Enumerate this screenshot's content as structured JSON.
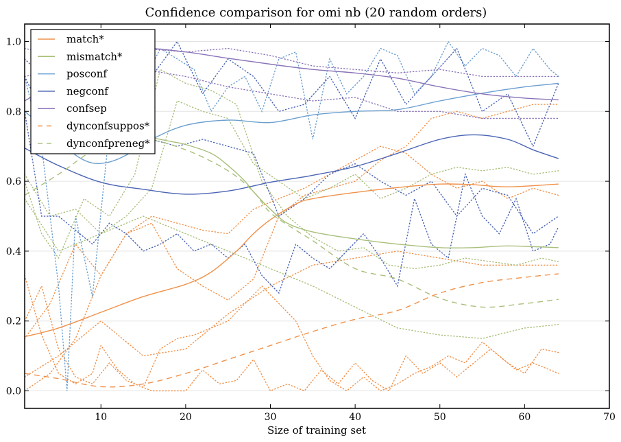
{
  "chart_data": {
    "type": "line",
    "title": "Confidence comparison for omi nb (20 random orders)",
    "xlabel": "Size of training set",
    "ylabel": "",
    "xlim": [
      1,
      70
    ],
    "ylim": [
      -0.05,
      1.05
    ],
    "xticks": [
      10,
      20,
      30,
      40,
      50,
      60,
      70
    ],
    "xtick_labels": [
      "10",
      "20",
      "30",
      "40",
      "50",
      "60",
      "70"
    ],
    "yticks": [
      0.0,
      0.2,
      0.4,
      0.6,
      0.8,
      1.0
    ],
    "ytick_labels": [
      "0.0",
      "0.2",
      "0.4",
      "0.6",
      "0.8",
      "1.0"
    ],
    "grid": "horizontal",
    "legend_position": "top-left",
    "series": [
      {
        "name": "match*",
        "style": "solid",
        "color": "#f0914a",
        "x": [
          1,
          5,
          10,
          15,
          20,
          23,
          26,
          28,
          30,
          33,
          35,
          40,
          45,
          50,
          54,
          58,
          64
        ],
        "y": [
          0.155,
          0.18,
          0.225,
          0.27,
          0.305,
          0.34,
          0.4,
          0.45,
          0.49,
          0.535,
          0.55,
          0.568,
          0.582,
          0.592,
          0.59,
          0.584,
          0.592
        ]
      },
      {
        "name": "mismatch*",
        "style": "solid",
        "color": "#a8bf7a",
        "x": [
          15,
          18,
          20,
          23,
          25,
          27,
          28,
          30,
          32,
          35,
          40,
          45,
          50,
          54,
          58,
          64
        ],
        "y": [
          0.73,
          0.715,
          0.705,
          0.68,
          0.645,
          0.6,
          0.57,
          0.52,
          0.48,
          0.455,
          0.435,
          0.42,
          0.41,
          0.41,
          0.415,
          0.41
        ]
      },
      {
        "name": "posconf",
        "style": "solid",
        "color": "#6b9fd0",
        "x": [
          1,
          3,
          5,
          7,
          9,
          11,
          13,
          16,
          20,
          25,
          30,
          35,
          40,
          45,
          50,
          55,
          60,
          64
        ],
        "y": [
          0.8,
          0.76,
          0.72,
          0.675,
          0.652,
          0.655,
          0.675,
          0.72,
          0.76,
          0.775,
          0.768,
          0.79,
          0.8,
          0.805,
          0.83,
          0.852,
          0.87,
          0.88
        ]
      },
      {
        "name": "negconf",
        "style": "solid",
        "color": "#4a64b4",
        "x": [
          1,
          5,
          10,
          15,
          20,
          25,
          30,
          35,
          40,
          45,
          50,
          54,
          58,
          61,
          64
        ],
        "y": [
          0.695,
          0.645,
          0.597,
          0.577,
          0.563,
          0.572,
          0.597,
          0.617,
          0.642,
          0.68,
          0.72,
          0.733,
          0.72,
          0.69,
          0.665
        ]
      },
      {
        "name": "confsep",
        "style": "solid",
        "color": "#8a74b8",
        "x": [
          1,
          3,
          6,
          10,
          15,
          20,
          25,
          30,
          35,
          40,
          45,
          50,
          55,
          60,
          64
        ],
        "y": [
          0.83,
          0.86,
          0.92,
          0.965,
          0.98,
          0.97,
          0.952,
          0.935,
          0.92,
          0.91,
          0.895,
          0.87,
          0.85,
          0.838,
          0.833
        ]
      },
      {
        "name": "dynconfsuppos*",
        "style": "dashed",
        "color": "#f0914a",
        "x": [
          1,
          5,
          10,
          15,
          20,
          25,
          30,
          35,
          40,
          45,
          50,
          55,
          60,
          64
        ],
        "y": [
          0.05,
          0.035,
          0.012,
          0.02,
          0.05,
          0.09,
          0.13,
          0.17,
          0.205,
          0.23,
          0.28,
          0.31,
          0.325,
          0.335
        ]
      },
      {
        "name": "dynconfpreneg*",
        "style": "dashed",
        "color": "#a8bf7a",
        "x": [
          1,
          5,
          10,
          15,
          20,
          25,
          28,
          30,
          33,
          35,
          40,
          45,
          50,
          55,
          60,
          64
        ],
        "y": [
          0.56,
          0.62,
          0.7,
          0.72,
          0.69,
          0.63,
          0.57,
          0.51,
          0.46,
          0.43,
          0.35,
          0.32,
          0.265,
          0.24,
          0.25,
          0.262
        ]
      }
    ],
    "dotted_series": [
      {
        "color": "#f0914a",
        "x": [
          1,
          3,
          5,
          7,
          9,
          10,
          12,
          14,
          16,
          18,
          20,
          22,
          24,
          26,
          28,
          30,
          32,
          34,
          36,
          38,
          40,
          42,
          44,
          46,
          48,
          50,
          52,
          54,
          56,
          58,
          60,
          62,
          64
        ],
        "y": [
          0.33,
          0.16,
          0.05,
          0.02,
          0.05,
          0.13,
          0.06,
          0.02,
          0.0,
          0.0,
          0.0,
          0.06,
          0.02,
          0.03,
          0.09,
          0.0,
          0.02,
          0.0,
          0.06,
          0.02,
          0.08,
          0.03,
          0.0,
          0.1,
          0.05,
          0.08,
          0.04,
          0.08,
          0.12,
          0.08,
          0.05,
          0.12,
          0.11
        ]
      },
      {
        "color": "#f0914a",
        "x": [
          1,
          3,
          5,
          7,
          9,
          11,
          13,
          15,
          17,
          19,
          21,
          23,
          25,
          27,
          29,
          31,
          33,
          35,
          37,
          39,
          41,
          43,
          45,
          47,
          49,
          51,
          53,
          55,
          57,
          59,
          61,
          64
        ],
        "y": [
          0.2,
          0.3,
          0.12,
          0.04,
          0.02,
          0.08,
          0.03,
          0.01,
          0.12,
          0.15,
          0.16,
          0.18,
          0.2,
          0.25,
          0.3,
          0.25,
          0.2,
          0.1,
          0.03,
          0.0,
          0.04,
          0.0,
          0.02,
          0.05,
          0.07,
          0.1,
          0.08,
          0.14,
          0.1,
          0.06,
          0.08,
          0.05
        ]
      },
      {
        "color": "#f0914a",
        "x": [
          1,
          4,
          7,
          10,
          13,
          16,
          19,
          22,
          25,
          28,
          31,
          34,
          37,
          40,
          43,
          46,
          49,
          52,
          55,
          58,
          61,
          64
        ],
        "y": [
          0.0,
          0.05,
          0.15,
          0.33,
          0.45,
          0.5,
          0.48,
          0.46,
          0.45,
          0.52,
          0.55,
          0.58,
          0.62,
          0.66,
          0.7,
          0.68,
          0.62,
          0.58,
          0.6,
          0.55,
          0.58,
          0.56
        ]
      },
      {
        "color": "#f0914a",
        "x": [
          1,
          4,
          7,
          10,
          13,
          16,
          19,
          22,
          25,
          28,
          31,
          34,
          37,
          40,
          43,
          46,
          49,
          52,
          55,
          58,
          61,
          64
        ],
        "y": [
          0.15,
          0.25,
          0.42,
          0.33,
          0.45,
          0.48,
          0.35,
          0.3,
          0.26,
          0.32,
          0.5,
          0.56,
          0.58,
          0.6,
          0.66,
          0.7,
          0.78,
          0.8,
          0.78,
          0.8,
          0.82,
          0.82
        ]
      },
      {
        "color": "#f0914a",
        "x": [
          1,
          5,
          10,
          15,
          20,
          25,
          30,
          35,
          40,
          45,
          50,
          55,
          60,
          64
        ],
        "y": [
          0.04,
          0.1,
          0.2,
          0.1,
          0.12,
          0.22,
          0.3,
          0.36,
          0.38,
          0.4,
          0.38,
          0.36,
          0.36,
          0.36
        ]
      },
      {
        "color": "#a8bf7a",
        "x": [
          1,
          3,
          5,
          8,
          11,
          14,
          17,
          20,
          23,
          26,
          29,
          32,
          35,
          38,
          41,
          44,
          47,
          50,
          53,
          56,
          59,
          62,
          64
        ],
        "y": [
          0.6,
          0.45,
          0.38,
          0.55,
          0.5,
          0.62,
          0.92,
          0.88,
          0.86,
          0.82,
          0.6,
          0.5,
          0.44,
          0.4,
          0.41,
          0.36,
          0.35,
          0.36,
          0.38,
          0.37,
          0.36,
          0.38,
          0.37
        ]
      },
      {
        "color": "#a8bf7a",
        "x": [
          1,
          4,
          7,
          10,
          13,
          16,
          19,
          22,
          25,
          28,
          31,
          34,
          37,
          40,
          43,
          46,
          49,
          52,
          55,
          58,
          61,
          64
        ],
        "y": [
          0.62,
          0.5,
          0.52,
          0.45,
          0.5,
          0.58,
          0.83,
          0.8,
          0.78,
          0.65,
          0.6,
          0.55,
          0.58,
          0.62,
          0.55,
          0.58,
          0.62,
          0.64,
          0.63,
          0.64,
          0.62,
          0.63
        ]
      },
      {
        "color": "#a8bf7a",
        "x": [
          1,
          5,
          10,
          15,
          20,
          25,
          30,
          35,
          40,
          45,
          50,
          55,
          60,
          64
        ],
        "y": [
          0.55,
          0.4,
          0.45,
          0.5,
          0.45,
          0.4,
          0.35,
          0.3,
          0.24,
          0.18,
          0.16,
          0.15,
          0.18,
          0.19
        ]
      },
      {
        "color": "#6b9fd0",
        "x": [
          1,
          3,
          5,
          6,
          7,
          9,
          11,
          13,
          15,
          17,
          19,
          21,
          23,
          25,
          27,
          29,
          31,
          33,
          35,
          37,
          39,
          41,
          43,
          45,
          47,
          49,
          51,
          53,
          55,
          57,
          59,
          61,
          63,
          64
        ],
        "y": [
          0.9,
          0.7,
          0.3,
          0.0,
          0.5,
          0.27,
          0.75,
          0.95,
          0.88,
          0.98,
          0.95,
          0.92,
          0.8,
          0.87,
          0.9,
          0.8,
          0.95,
          0.97,
          0.72,
          0.95,
          0.85,
          0.9,
          0.98,
          0.96,
          0.85,
          0.9,
          1.0,
          0.93,
          0.98,
          0.96,
          0.9,
          0.98,
          0.92,
          0.9
        ]
      },
      {
        "color": "#4a64b4",
        "x": [
          1,
          3,
          5,
          7,
          9,
          11,
          13,
          15,
          17,
          19,
          21,
          23,
          25,
          27,
          29,
          31,
          33,
          35,
          37,
          39,
          41,
          43,
          45,
          47,
          49,
          51,
          53,
          55,
          57,
          59,
          61,
          63,
          64
        ],
        "y": [
          0.8,
          0.5,
          0.5,
          0.46,
          0.42,
          0.48,
          0.45,
          0.4,
          0.42,
          0.45,
          0.4,
          0.42,
          0.38,
          0.42,
          0.33,
          0.28,
          0.42,
          0.38,
          0.35,
          0.4,
          0.45,
          0.38,
          0.3,
          0.55,
          0.42,
          0.38,
          0.62,
          0.5,
          0.45,
          0.55,
          0.4,
          0.42,
          0.47
        ]
      },
      {
        "color": "#4a64b4",
        "x": [
          1,
          4,
          7,
          10,
          13,
          16,
          19,
          22,
          25,
          28,
          31,
          34,
          37,
          40,
          43,
          46,
          49,
          52,
          55,
          58,
          61,
          64
        ],
        "y": [
          0.9,
          0.75,
          0.7,
          0.68,
          0.7,
          0.72,
          0.7,
          0.72,
          0.7,
          0.68,
          0.5,
          0.55,
          0.62,
          0.65,
          0.6,
          0.56,
          0.6,
          0.5,
          0.58,
          0.56,
          0.45,
          0.5
        ]
      },
      {
        "color": "#4a64b4",
        "x": [
          1,
          4,
          7,
          10,
          13,
          16,
          19,
          22,
          25,
          28,
          31,
          34,
          37,
          40,
          43,
          46,
          49,
          52,
          55,
          58,
          61,
          64
        ],
        "y": [
          0.95,
          0.88,
          0.9,
          0.95,
          0.98,
          0.9,
          1.0,
          0.85,
          0.95,
          0.9,
          0.8,
          0.82,
          0.9,
          0.78,
          0.95,
          0.82,
          0.9,
          0.98,
          0.8,
          0.85,
          0.7,
          0.88
        ]
      },
      {
        "color": "#8a74b8",
        "x": [
          1,
          5,
          10,
          15,
          20,
          25,
          30,
          35,
          40,
          45,
          50,
          55,
          60,
          64
        ],
        "y": [
          0.98,
          0.96,
          0.96,
          0.98,
          0.97,
          0.98,
          0.96,
          0.93,
          0.92,
          0.91,
          0.92,
          0.9,
          0.9,
          0.9
        ]
      },
      {
        "color": "#8a74b8",
        "x": [
          1,
          5,
          10,
          15,
          20,
          25,
          30,
          35,
          40,
          45,
          50,
          55,
          60,
          64
        ],
        "y": [
          0.9,
          0.92,
          0.9,
          0.92,
          0.9,
          0.87,
          0.85,
          0.83,
          0.84,
          0.8,
          0.8,
          0.78,
          0.78,
          0.78
        ]
      }
    ]
  }
}
